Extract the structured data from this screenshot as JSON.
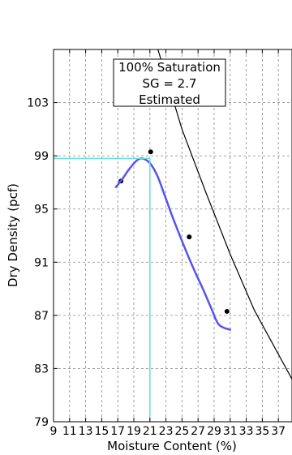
{
  "chart_data": {
    "type": "scatter",
    "xlabel": "Moisture Content (%)",
    "ylabel": "Dry Density (pcf)",
    "xlim": [
      9,
      38.7
    ],
    "ylim": [
      79,
      107
    ],
    "x_ticks": [
      9,
      11,
      13,
      15,
      17,
      19,
      21,
      23,
      25,
      27,
      29,
      31,
      33,
      35,
      37
    ],
    "x_tick_labels": [
      "9",
      "11",
      "13",
      "15",
      "17",
      "19",
      "21",
      "23",
      "25",
      "27",
      "29",
      "31",
      "33",
      "35",
      "37"
    ],
    "y_ticks": [
      79,
      83,
      87,
      91,
      95,
      99,
      103
    ],
    "y_tick_labels": [
      "79",
      "83",
      "87",
      "91",
      "95",
      "99",
      "103"
    ],
    "grid": true,
    "annotation": {
      "lines": [
        "100% Saturation",
        "SG = 2.7",
        "Estimated"
      ],
      "x": 23,
      "y": 105.7
    },
    "series": [
      {
        "kind": "points",
        "color": "#000000",
        "points": [
          [
            17.4,
            97.1
          ],
          [
            21.1,
            99.3
          ],
          [
            25.9,
            92.9
          ],
          [
            30.6,
            87.3
          ]
        ]
      },
      {
        "kind": "curve",
        "color": "#5555ee",
        "points": [
          [
            16.7,
            96.6
          ],
          [
            17.5,
            97.2
          ],
          [
            18.3,
            97.9
          ],
          [
            19.1,
            98.5
          ],
          [
            19.8,
            98.8
          ],
          [
            20.5,
            98.7
          ],
          [
            21.2,
            98.3
          ],
          [
            22.0,
            97.4
          ],
          [
            22.8,
            96.1
          ],
          [
            23.7,
            94.6
          ],
          [
            24.6,
            93.2
          ],
          [
            25.6,
            91.7
          ],
          [
            26.6,
            90.3
          ],
          [
            27.6,
            89.0
          ],
          [
            28.6,
            87.6
          ],
          [
            29.6,
            86.3
          ],
          [
            31.1,
            85.9
          ]
        ]
      },
      {
        "kind": "line",
        "color": "#000000",
        "points": [
          [
            22.0,
            107
          ],
          [
            25.0,
            101
          ],
          [
            28.0,
            96.2
          ],
          [
            31.0,
            91.6
          ],
          [
            34.0,
            87.4
          ],
          [
            38.7,
            82.2
          ]
        ]
      },
      {
        "kind": "reference",
        "color": "#66dddd",
        "points": [
          [
            9,
            98.8
          ],
          [
            21.0,
            98.8
          ],
          [
            21.0,
            79
          ]
        ]
      }
    ]
  }
}
